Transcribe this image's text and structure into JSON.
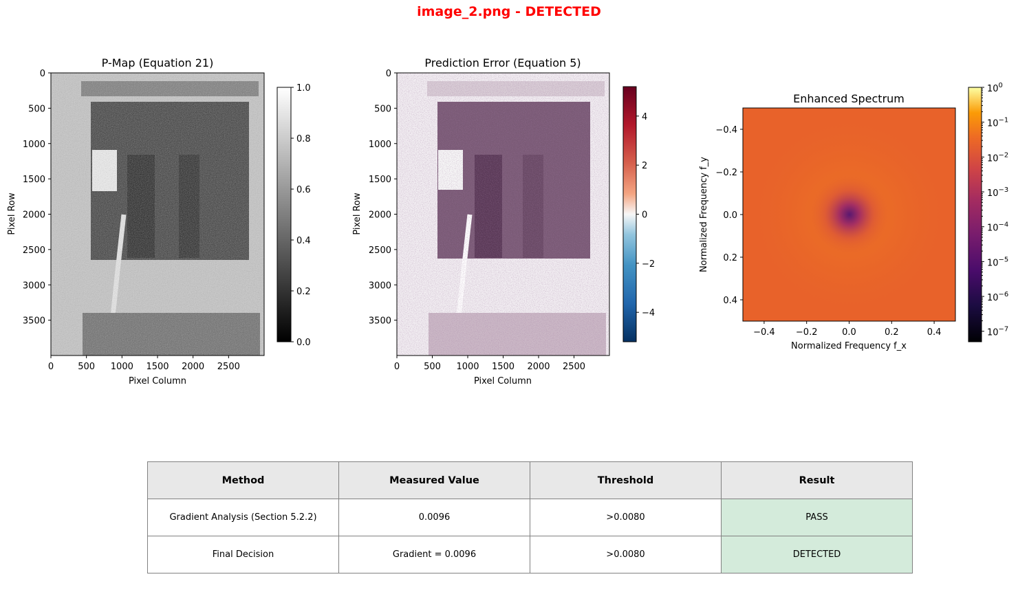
{
  "figure": {
    "title": "image_2.png - DETECTED",
    "title_color": "#ff0000"
  },
  "chart_data": [
    {
      "type": "heatmap",
      "title": "P-Map (Equation 21)",
      "xlabel": "Pixel Column",
      "ylabel": "Pixel Row",
      "xticks": [
        0,
        500,
        1000,
        1500,
        2000,
        2500
      ],
      "yticks": [
        0,
        500,
        1000,
        1500,
        2000,
        2500,
        3000,
        3500
      ],
      "xlim": [
        0,
        3000
      ],
      "ylim": [
        4000,
        0
      ],
      "colormap": "gray",
      "colorbar": {
        "min": 0.0,
        "max": 1.0,
        "ticks": [
          "0.0",
          "0.2",
          "0.4",
          "0.6",
          "0.8",
          "1.0"
        ]
      }
    },
    {
      "type": "heatmap",
      "title": "Prediction Error (Equation 5)",
      "xlabel": "Pixel Column",
      "ylabel": "Pixel Row",
      "xticks": [
        0,
        500,
        1000,
        1500,
        2000,
        2500
      ],
      "yticks": [
        0,
        500,
        1000,
        1500,
        2000,
        2500,
        3000,
        3500
      ],
      "xlim": [
        0,
        3000
      ],
      "ylim": [
        4000,
        0
      ],
      "colormap": "RdBu_r",
      "colorbar": {
        "min": -5.2,
        "max": 5.2,
        "ticks": [
          "−4",
          "−2",
          "0",
          "2",
          "4"
        ]
      }
    },
    {
      "type": "heatmap",
      "title": "Enhanced Spectrum",
      "xlabel": "Normalized Frequency f_x",
      "ylabel": "Normalized Frequency f_y",
      "xticks": [
        "−0.4",
        "−0.2",
        "0.0",
        "0.2",
        "0.4"
      ],
      "yticks": [
        "−0.4",
        "−0.2",
        "0.0",
        "0.2",
        "0.4"
      ],
      "xlim": [
        -0.5,
        0.5
      ],
      "ylim": [
        -0.5,
        0.5
      ],
      "colormap": "inferno",
      "colorbar": {
        "scale": "log",
        "min": 5e-08,
        "max": 1,
        "ticks": [
          "10^0",
          "10^-1",
          "10^-2",
          "10^-3",
          "10^-4",
          "10^-5",
          "10^-6",
          "10^-7"
        ]
      }
    }
  ],
  "table": {
    "headers": [
      "Method",
      "Measured Value",
      "Threshold",
      "Result"
    ],
    "rows": [
      [
        "Gradient Analysis (Section 5.2.2)",
        "0.0096",
        ">0.0080",
        "PASS"
      ],
      [
        "Final Decision",
        "Gradient = 0.0096",
        ">0.0080",
        "DETECTED"
      ]
    ],
    "result_color": "#d4ebdb",
    "header_color": "#e8e8e8"
  }
}
